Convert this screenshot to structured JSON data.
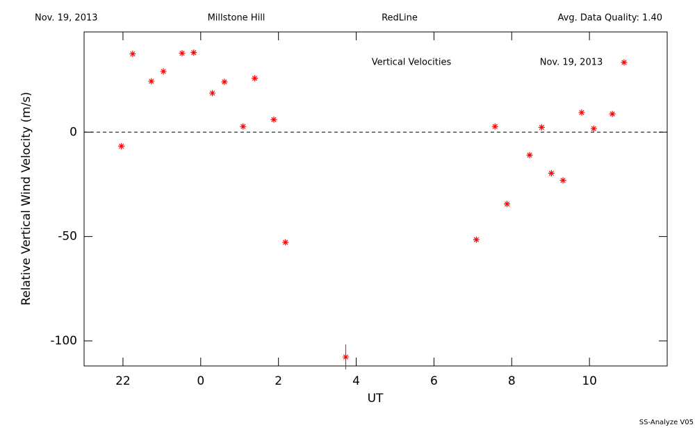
{
  "header": {
    "date": "Nov. 19, 2013",
    "site": "Millstone Hill",
    "filter": "RedLine",
    "quality": "Avg. Data Quality: 1.40"
  },
  "footer": "SS-Analyze V05",
  "chart_data": {
    "type": "scatter",
    "annotations": [
      "Vertical Velocities",
      "Nov. 19, 2013"
    ],
    "x_label": "UT",
    "y_label": "Relative Vertical Wind Velocity (m/s)",
    "x": [
      -2.04,
      -1.75,
      -1.27,
      -0.96,
      -0.48,
      -0.18,
      0.3,
      0.61,
      1.09,
      1.39,
      1.88,
      2.18,
      3.73,
      7.09,
      7.57,
      7.88,
      8.46,
      8.77,
      9.02,
      9.32,
      9.8,
      10.11,
      10.59,
      10.89
    ],
    "values": [
      -6.7,
      37.5,
      24.4,
      29.1,
      37.8,
      38.1,
      18.7,
      24.1,
      2.7,
      25.8,
      6.0,
      -52.8,
      -107.7,
      -51.5,
      2.7,
      -34.4,
      -11.0,
      2.3,
      -19.7,
      -23.1,
      9.4,
      1.7,
      8.7,
      33.4
    ],
    "errors": [
      null,
      null,
      null,
      null,
      null,
      null,
      null,
      null,
      null,
      null,
      null,
      null,
      6,
      null,
      null,
      null,
      null,
      null,
      null,
      null,
      null,
      null,
      null,
      null
    ],
    "color": "#ff0000",
    "reference_line": 0,
    "xlim": [
      -3,
      12
    ],
    "xticks": [
      {
        "value": -2,
        "label": "22"
      },
      0,
      2,
      4,
      6,
      8,
      10
    ],
    "ylim": [
      -112,
      48
    ],
    "yticks": [
      -100,
      -50,
      0
    ]
  }
}
